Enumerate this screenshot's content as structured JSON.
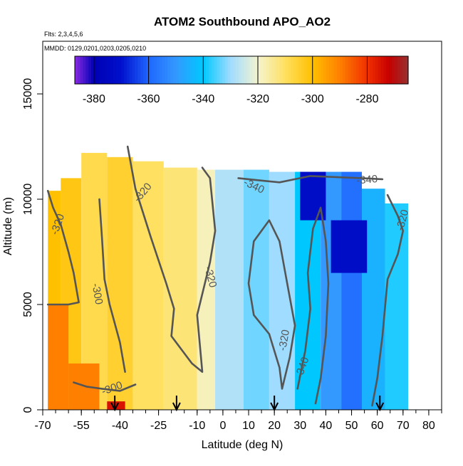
{
  "chart_data": {
    "type": "heatmap",
    "title": "ATOM2 Southbound APO_AO2",
    "subtitle_lines": [
      "Flts: 2,3,4,5,6",
      "MMDD: 0129,0201,0203,0205,0210"
    ],
    "xlabel": "Latitude (deg N)",
    "ylabel": "Altitude (m)",
    "xlim": [
      -70,
      85
    ],
    "ylim": [
      0,
      17500
    ],
    "x_ticks": [
      -70,
      -55,
      -40,
      -25,
      -10,
      0,
      10,
      20,
      30,
      40,
      50,
      60,
      70,
      80
    ],
    "x_tick_labels": [
      "-70",
      "-55",
      "-40",
      "-25",
      "-10",
      "0",
      "10",
      "20",
      "30",
      "40",
      "50",
      "60",
      "70",
      "80"
    ],
    "y_ticks": [
      0,
      5000,
      10000,
      15000
    ],
    "y_tick_labels": [
      "0",
      "5000",
      "10000",
      "15000"
    ],
    "colorbar": {
      "range": [
        -387,
        -265
      ],
      "ticks": [
        -380,
        -360,
        -340,
        -320,
        -300,
        -280
      ],
      "tick_labels": [
        "-380",
        "-360",
        "-340",
        "-320",
        "-300",
        "-280"
      ],
      "stops": [
        {
          "v": -387,
          "c": "#8a2be2"
        },
        {
          "v": -380,
          "c": "#0000b4"
        },
        {
          "v": -370,
          "c": "#0010cc"
        },
        {
          "v": -360,
          "c": "#1f66ff"
        },
        {
          "v": -350,
          "c": "#3399ff"
        },
        {
          "v": -340,
          "c": "#00c8ff"
        },
        {
          "v": -330,
          "c": "#a0dcff"
        },
        {
          "v": -320,
          "c": "#f4f4d0"
        },
        {
          "v": -310,
          "c": "#ffe060"
        },
        {
          "v": -300,
          "c": "#ffc000"
        },
        {
          "v": -290,
          "c": "#ff8000"
        },
        {
          "v": -280,
          "c": "#f03000"
        },
        {
          "v": -272,
          "c": "#c80000"
        },
        {
          "v": -265,
          "c": "#963030"
        }
      ]
    },
    "fields": [
      {
        "lat": [
          -68,
          -63
        ],
        "alt": [
          0,
          10400
        ],
        "value": -300
      },
      {
        "lat": [
          -63,
          -55
        ],
        "alt": [
          0,
          11000
        ],
        "value": -302
      },
      {
        "lat": [
          -55,
          -45
        ],
        "alt": [
          0,
          12200
        ],
        "value": -308
      },
      {
        "lat": [
          -45,
          -35
        ],
        "alt": [
          0,
          12000
        ],
        "value": -305
      },
      {
        "lat": [
          -35,
          -23
        ],
        "alt": [
          0,
          11800
        ],
        "value": -310
      },
      {
        "lat": [
          -23,
          -10
        ],
        "alt": [
          0,
          11500
        ],
        "value": -312
      },
      {
        "lat": [
          -10,
          -3
        ],
        "alt": [
          0,
          11400
        ],
        "value": -318
      },
      {
        "lat": [
          -3,
          8
        ],
        "alt": [
          0,
          11400
        ],
        "value": -328
      },
      {
        "lat": [
          8,
          18
        ],
        "alt": [
          0,
          11400
        ],
        "value": -333
      },
      {
        "lat": [
          18,
          28
        ],
        "alt": [
          0,
          11300
        ],
        "value": -330
      },
      {
        "lat": [
          28,
          38
        ],
        "alt": [
          0,
          11300
        ],
        "value": -340
      },
      {
        "lat": [
          38,
          46
        ],
        "alt": [
          0,
          11300
        ],
        "value": -350
      },
      {
        "lat": [
          46,
          54
        ],
        "alt": [
          0,
          11300
        ],
        "value": -358
      },
      {
        "lat": [
          54,
          63
        ],
        "alt": [
          0,
          10500
        ],
        "value": -345
      },
      {
        "lat": [
          63,
          72
        ],
        "alt": [
          0,
          9800
        ],
        "value": -338
      },
      {
        "lat": [
          -68,
          -60
        ],
        "alt": [
          0,
          5000
        ],
        "value": -290
      },
      {
        "lat": [
          -60,
          -48
        ],
        "alt": [
          0,
          2200
        ],
        "value": -290
      },
      {
        "lat": [
          -45,
          -38
        ],
        "alt": [
          0,
          400
        ],
        "value": -275
      },
      {
        "lat": [
          30,
          40
        ],
        "alt": [
          9000,
          11300
        ],
        "value": -372
      },
      {
        "lat": [
          42,
          56
        ],
        "alt": [
          6500,
          9000
        ],
        "value": -372
      }
    ],
    "contours": [
      {
        "level": -320,
        "points": [
          [
            -68,
            10400
          ],
          [
            -66,
            9600
          ],
          [
            -63,
            8800
          ],
          [
            -60,
            7500
          ],
          [
            -58,
            6500
          ],
          [
            -56,
            5100
          ],
          [
            -60,
            5000
          ],
          [
            -66,
            5000
          ],
          [
            -68,
            5000
          ]
        ]
      },
      {
        "level": -320,
        "points": [
          [
            -37,
            12500
          ],
          [
            -34,
            10500
          ],
          [
            -28,
            8200
          ],
          [
            -22,
            6000
          ],
          [
            -19,
            4800
          ],
          [
            -20,
            3500
          ],
          [
            -12,
            2200
          ],
          [
            -8,
            1800
          ],
          [
            -10,
            4500
          ],
          [
            -5,
            7000
          ],
          [
            -3,
            8500
          ],
          [
            -5,
            11000
          ],
          [
            -8,
            11500
          ]
        ]
      },
      {
        "level": -340,
        "points": [
          [
            6,
            11000
          ],
          [
            14,
            10900
          ],
          [
            22,
            10800
          ],
          [
            34,
            11100
          ],
          [
            44,
            11050
          ],
          [
            54,
            11000
          ],
          [
            62,
            10950
          ]
        ]
      },
      {
        "level": -320,
        "points": [
          [
            64,
            10200
          ],
          [
            68,
            9200
          ],
          [
            70,
            8500
          ],
          [
            68,
            7400
          ],
          [
            64,
            6200
          ],
          [
            62,
            3500
          ],
          [
            60,
            1500
          ],
          [
            58,
            200
          ]
        ]
      },
      {
        "level": -320,
        "points": [
          [
            23,
            1000
          ],
          [
            26,
            2500
          ],
          [
            28,
            4000
          ],
          [
            25,
            6000
          ],
          [
            22,
            8000
          ],
          [
            18,
            9000
          ],
          [
            12,
            8000
          ],
          [
            10,
            6000
          ],
          [
            12,
            4500
          ],
          [
            18,
            3600
          ],
          [
            22,
            2000
          ],
          [
            23,
            1000
          ]
        ]
      },
      {
        "level": -340,
        "points": [
          [
            29,
            1000
          ],
          [
            32,
            2800
          ],
          [
            34,
            4800
          ],
          [
            33,
            6500
          ],
          [
            35,
            8600
          ],
          [
            38,
            9600
          ],
          [
            40,
            8000
          ],
          [
            41,
            6000
          ],
          [
            40,
            3500
          ],
          [
            38,
            1500
          ],
          [
            36,
            300
          ]
        ]
      },
      {
        "level": -300,
        "points": [
          [
            -48,
            10000
          ],
          [
            -47,
            8200
          ],
          [
            -46,
            6200
          ],
          [
            -44,
            5000
          ],
          [
            -40,
            3200
          ],
          [
            -38,
            1800
          ]
        ]
      },
      {
        "level": -300,
        "points": [
          [
            -58,
            1300
          ],
          [
            -53,
            1100
          ],
          [
            -47,
            1000
          ],
          [
            -40,
            900
          ],
          [
            -34,
            1200
          ]
        ]
      }
    ],
    "contour_labels": [
      {
        "text": "-320",
        "lat": -64,
        "alt": 8800,
        "angle": -70
      },
      {
        "text": "-320",
        "lat": -31,
        "alt": 10300,
        "angle": -50
      },
      {
        "text": "-300",
        "lat": -49,
        "alt": 5500,
        "angle": 80
      },
      {
        "text": "-320",
        "lat": -5,
        "alt": 6300,
        "angle": 75
      },
      {
        "text": "-340",
        "lat": 12,
        "alt": 10600,
        "angle": 25
      },
      {
        "text": "-340",
        "lat": 56,
        "alt": 10900,
        "angle": -5
      },
      {
        "text": "-320",
        "lat": 70,
        "alt": 9000,
        "angle": -75
      },
      {
        "text": "-320",
        "lat": 24,
        "alt": 3300,
        "angle": -80
      },
      {
        "text": "-340",
        "lat": 31,
        "alt": 2000,
        "angle": -70
      },
      {
        "text": "-300",
        "lat": -43,
        "alt": 1000,
        "angle": -20
      }
    ],
    "arrows_lat": [
      -42,
      -18,
      20,
      61
    ]
  }
}
